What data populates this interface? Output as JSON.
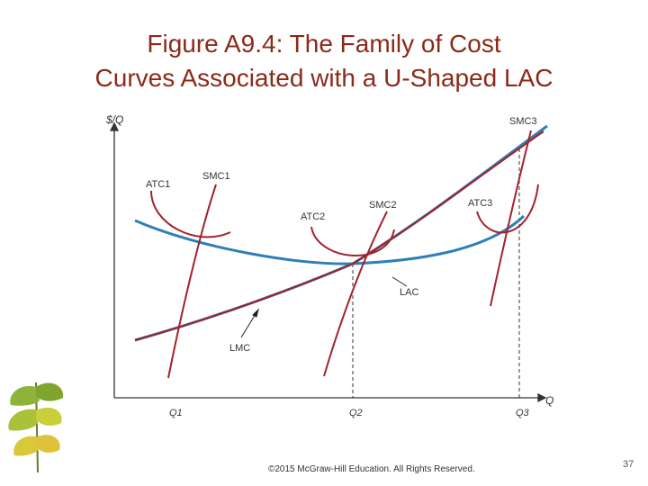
{
  "slide": {
    "title_line1": "Figure A9.4: The Family of Cost",
    "title_line2": "Curves Associated with a U-Shaped LAC",
    "copyright": "©2015 McGraw-Hill Education. All Rights Reserved.",
    "page_number": "37"
  },
  "diagram": {
    "y_axis_label": "$/Q",
    "x_axis_label": "Q",
    "ticks": {
      "q1": "Q1",
      "q2": "Q2",
      "q3": "Q3"
    },
    "curve_labels": {
      "atc1": "ATC1",
      "smc1": "SMC1",
      "atc2": "ATC2",
      "smc2": "SMC2",
      "atc3": "ATC3",
      "smc3": "SMC3",
      "lac": "LAC",
      "lmc": "LMC"
    },
    "colors": {
      "lac": "#2f7fb8",
      "curves": "#a3222b",
      "title": "#8b2a18",
      "axis": "#333333"
    }
  },
  "decoration": {
    "leaf_icon": "ginkgo-leaves-icon"
  }
}
